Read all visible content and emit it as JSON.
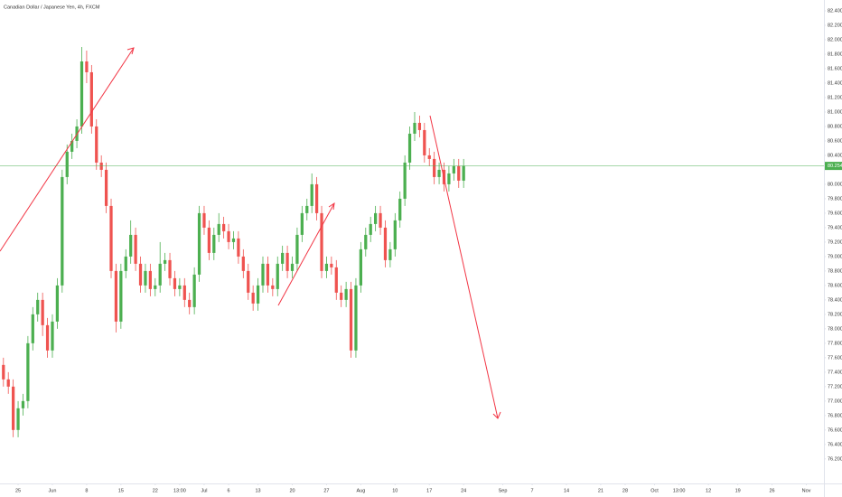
{
  "chart_data": {
    "type": "candlestick",
    "title": "Canadian Dollar / Japanese Yen, 4h, FXCM",
    "up_color": "#4caf50",
    "down_color": "#ef5350",
    "grid": false,
    "last_price": {
      "value": 80.254,
      "label": "80.254",
      "color": "#4caf50"
    },
    "xlim": [
      -3.7,
      164.6
    ],
    "ylim": [
      75.86,
      82.55
    ],
    "xticks": [
      {
        "value": 0,
        "label": "25"
      },
      {
        "value": 7,
        "label": "Jun"
      },
      {
        "value": 14,
        "label": "8"
      },
      {
        "value": 21,
        "label": "15"
      },
      {
        "value": 28,
        "label": "22"
      },
      {
        "value": 33,
        "label": "13:00"
      },
      {
        "value": 38,
        "label": "Jul"
      },
      {
        "value": 43,
        "label": "6"
      },
      {
        "value": 49,
        "label": "13"
      },
      {
        "value": 56,
        "label": "20"
      },
      {
        "value": 63,
        "label": "27"
      },
      {
        "value": 70,
        "label": "Aug"
      },
      {
        "value": 77,
        "label": "10"
      },
      {
        "value": 84,
        "label": "17"
      },
      {
        "value": 91,
        "label": "24"
      },
      {
        "value": 99,
        "label": "Sep"
      },
      {
        "value": 105,
        "label": "7"
      },
      {
        "value": 112,
        "label": "14"
      },
      {
        "value": 119,
        "label": "21"
      },
      {
        "value": 124,
        "label": "28"
      },
      {
        "value": 130,
        "label": "Oct"
      },
      {
        "value": 135,
        "label": "13:00"
      },
      {
        "value": 141,
        "label": "12"
      },
      {
        "value": 147,
        "label": "19"
      },
      {
        "value": 154,
        "label": "26"
      },
      {
        "value": 161,
        "label": "Nov"
      }
    ],
    "yticks": [
      {
        "value": 76.2,
        "label": "76.200"
      },
      {
        "value": 76.4,
        "label": "76.400"
      },
      {
        "value": 76.6,
        "label": "76.600"
      },
      {
        "value": 76.8,
        "label": "76.800"
      },
      {
        "value": 77,
        "label": "77.000"
      },
      {
        "value": 77.2,
        "label": "77.200"
      },
      {
        "value": 77.4,
        "label": "77.400"
      },
      {
        "value": 77.6,
        "label": "77.600"
      },
      {
        "value": 77.8,
        "label": "77.800"
      },
      {
        "value": 78,
        "label": "78.000"
      },
      {
        "value": 78.2,
        "label": "78.200"
      },
      {
        "value": 78.4,
        "label": "78.400"
      },
      {
        "value": 78.6,
        "label": "78.600"
      },
      {
        "value": 78.8,
        "label": "78.800"
      },
      {
        "value": 79,
        "label": "79.000"
      },
      {
        "value": 79.2,
        "label": "79.200"
      },
      {
        "value": 79.4,
        "label": "79.400"
      },
      {
        "value": 79.6,
        "label": "79.600"
      },
      {
        "value": 79.8,
        "label": "79.800"
      },
      {
        "value": 80,
        "label": "80.000"
      },
      {
        "value": 80.4,
        "label": "80.400"
      },
      {
        "value": 80.6,
        "label": "80.600"
      },
      {
        "value": 80.8,
        "label": "80.800"
      },
      {
        "value": 81,
        "label": "81.000"
      },
      {
        "value": 81.2,
        "label": "81.200"
      },
      {
        "value": 81.4,
        "label": "81.400"
      },
      {
        "value": 81.6,
        "label": "81.600"
      },
      {
        "value": 81.8,
        "label": "81.800"
      },
      {
        "value": 82,
        "label": "82.000"
      },
      {
        "value": 82.2,
        "label": "82.200"
      },
      {
        "value": 82.4,
        "label": "82.400"
      }
    ],
    "x": [
      -3,
      -2,
      -1,
      0,
      1,
      2,
      3,
      4,
      5,
      6,
      7,
      8,
      9,
      10,
      11,
      12,
      13,
      14,
      15,
      16,
      17,
      18,
      19,
      20,
      21,
      22,
      23,
      24,
      25,
      26,
      27,
      28,
      29,
      30,
      31,
      32,
      33,
      34,
      35,
      36,
      37,
      38,
      39,
      40,
      41,
      42,
      43,
      44,
      45,
      46,
      47,
      48,
      49,
      50,
      51,
      52,
      53,
      54,
      55,
      56,
      57,
      58,
      59,
      60,
      61,
      62,
      63,
      64,
      65,
      66,
      67,
      68,
      69,
      70,
      71,
      72,
      73,
      74,
      75,
      76,
      77,
      78,
      79,
      80,
      81,
      82,
      83,
      84,
      85,
      86,
      87,
      88,
      89,
      90,
      91
    ],
    "ohlc": [
      [
        77.5,
        77.6,
        77.2,
        77.3
      ],
      [
        77.3,
        77.4,
        77.1,
        77.2
      ],
      [
        77.2,
        77.3,
        76.5,
        76.6
      ],
      [
        76.6,
        77.0,
        76.5,
        76.9
      ],
      [
        76.9,
        77.1,
        76.8,
        77.0
      ],
      [
        77.0,
        77.9,
        76.9,
        77.8
      ],
      [
        77.8,
        78.3,
        77.7,
        78.2
      ],
      [
        78.2,
        78.5,
        78.1,
        78.4
      ],
      [
        78.4,
        78.5,
        77.9,
        78.05
      ],
      [
        78.05,
        78.15,
        77.6,
        77.7
      ],
      [
        77.7,
        78.2,
        77.6,
        78.1
      ],
      [
        78.1,
        78.7,
        78.0,
        78.6
      ],
      [
        78.6,
        80.2,
        78.5,
        80.1
      ],
      [
        80.1,
        80.55,
        80.0,
        80.45
      ],
      [
        80.45,
        80.7,
        80.35,
        80.6
      ],
      [
        80.6,
        80.9,
        80.5,
        80.8
      ],
      [
        80.8,
        81.9,
        80.7,
        81.7
      ],
      [
        81.7,
        81.85,
        81.4,
        81.55
      ],
      [
        81.55,
        81.65,
        80.7,
        80.8
      ],
      [
        80.8,
        80.9,
        80.2,
        80.3
      ],
      [
        80.3,
        80.4,
        80.1,
        80.2
      ],
      [
        80.2,
        80.3,
        79.6,
        79.7
      ],
      [
        79.7,
        79.8,
        78.7,
        78.8
      ],
      [
        78.8,
        78.9,
        77.95,
        78.1
      ],
      [
        78.1,
        78.9,
        78.0,
        78.8
      ],
      [
        78.8,
        79.1,
        78.7,
        79.0
      ],
      [
        79.0,
        79.5,
        78.9,
        79.3
      ],
      [
        79.3,
        79.4,
        78.8,
        78.9
      ],
      [
        78.9,
        79.0,
        78.5,
        78.6
      ],
      [
        78.6,
        78.9,
        78.5,
        78.8
      ],
      [
        78.8,
        78.9,
        78.45,
        78.55
      ],
      [
        78.55,
        78.7,
        78.45,
        78.6
      ],
      [
        78.6,
        79.2,
        78.5,
        78.9
      ],
      [
        78.9,
        79.05,
        78.8,
        78.95
      ],
      [
        78.95,
        79.05,
        78.6,
        78.7
      ],
      [
        78.7,
        78.8,
        78.45,
        78.55
      ],
      [
        78.55,
        78.7,
        78.45,
        78.6
      ],
      [
        78.6,
        78.7,
        78.3,
        78.4
      ],
      [
        78.4,
        78.5,
        78.2,
        78.3
      ],
      [
        78.3,
        78.85,
        78.2,
        78.75
      ],
      [
        78.75,
        79.7,
        78.65,
        79.6
      ],
      [
        79.6,
        79.7,
        79.3,
        79.4
      ],
      [
        79.4,
        79.5,
        78.95,
        79.05
      ],
      [
        79.05,
        79.4,
        78.95,
        79.3
      ],
      [
        79.3,
        79.6,
        79.2,
        79.45
      ],
      [
        79.45,
        79.55,
        79.25,
        79.35
      ],
      [
        79.35,
        79.45,
        79.1,
        79.2
      ],
      [
        79.2,
        79.35,
        79.1,
        79.25
      ],
      [
        79.25,
        79.35,
        78.9,
        79.0
      ],
      [
        79.0,
        79.1,
        78.7,
        78.8
      ],
      [
        78.8,
        78.9,
        78.4,
        78.5
      ],
      [
        78.5,
        78.6,
        78.25,
        78.35
      ],
      [
        78.35,
        78.7,
        78.25,
        78.6
      ],
      [
        78.6,
        79.0,
        78.5,
        78.9
      ],
      [
        78.9,
        79.0,
        78.5,
        78.6
      ],
      [
        78.6,
        78.7,
        78.45,
        78.55
      ],
      [
        78.55,
        79.0,
        78.45,
        78.9
      ],
      [
        78.9,
        79.15,
        78.8,
        79.05
      ],
      [
        79.05,
        79.15,
        78.7,
        78.8
      ],
      [
        78.8,
        79.0,
        78.7,
        78.9
      ],
      [
        78.9,
        79.4,
        78.8,
        79.3
      ],
      [
        79.3,
        79.7,
        79.2,
        79.6
      ],
      [
        79.6,
        79.8,
        79.5,
        79.7
      ],
      [
        79.7,
        80.15,
        79.6,
        80.0
      ],
      [
        80.0,
        80.1,
        79.5,
        79.6
      ],
      [
        79.6,
        79.7,
        78.7,
        78.8
      ],
      [
        78.8,
        79.0,
        78.7,
        78.9
      ],
      [
        78.9,
        79.0,
        78.75,
        78.85
      ],
      [
        78.85,
        78.95,
        78.4,
        78.5
      ],
      [
        78.5,
        78.6,
        78.3,
        78.4
      ],
      [
        78.4,
        78.65,
        78.3,
        78.55
      ],
      [
        78.55,
        78.65,
        77.6,
        77.7
      ],
      [
        77.7,
        78.7,
        77.6,
        78.6
      ],
      [
        78.6,
        79.2,
        78.5,
        79.1
      ],
      [
        79.1,
        79.4,
        79.0,
        79.3
      ],
      [
        79.3,
        79.55,
        79.2,
        79.45
      ],
      [
        79.45,
        79.7,
        79.35,
        79.6
      ],
      [
        79.6,
        79.7,
        79.3,
        79.4
      ],
      [
        79.4,
        79.5,
        78.85,
        78.95
      ],
      [
        78.95,
        79.2,
        78.85,
        79.1
      ],
      [
        79.1,
        79.6,
        79.0,
        79.5
      ],
      [
        79.5,
        79.9,
        79.4,
        79.8
      ],
      [
        79.8,
        80.4,
        79.7,
        80.3
      ],
      [
        80.3,
        80.8,
        80.2,
        80.7
      ],
      [
        80.7,
        81.0,
        80.6,
        80.85
      ],
      [
        80.85,
        80.95,
        80.65,
        80.75
      ],
      [
        80.75,
        80.85,
        80.3,
        80.4
      ],
      [
        80.4,
        80.5,
        80.25,
        80.35
      ],
      [
        80.35,
        80.45,
        80.0,
        80.1
      ],
      [
        80.1,
        80.3,
        80.0,
        80.2
      ],
      [
        80.2,
        80.3,
        79.9,
        80.0
      ],
      [
        80.0,
        80.25,
        79.9,
        80.15
      ],
      [
        80.15,
        80.35,
        80.05,
        80.25
      ],
      [
        80.25,
        80.35,
        79.95,
        80.05
      ],
      [
        80.05,
        80.35,
        79.95,
        80.254
      ]
    ]
  }
}
